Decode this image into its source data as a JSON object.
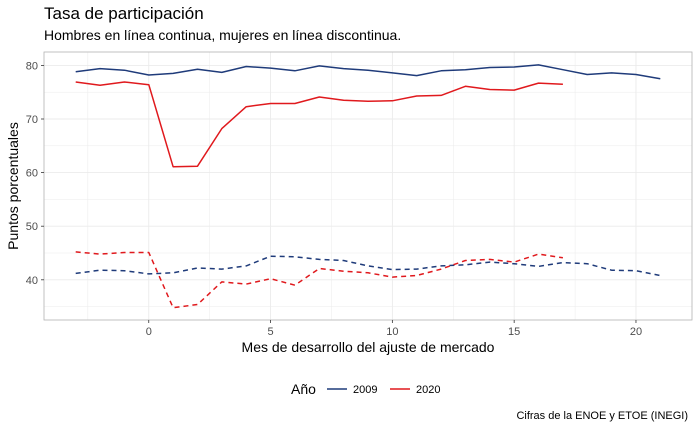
{
  "chart_data": {
    "type": "line",
    "title": "Tasa de participación",
    "subtitle": "Hombres en línea continua, mujeres en línea discontinua.",
    "xlabel": "Mes de desarrollo del ajuste de mercado",
    "ylabel": "Puntos porcentuales",
    "caption": "Cifras de la ENOE y ETOE (INEGI)",
    "legend_title": "Año",
    "legend_position": "bottom",
    "grid": true,
    "xlim": [
      -4.3,
      22.3
    ],
    "ylim": [
      32.5,
      82.5
    ],
    "xticks": [
      0,
      5,
      10,
      15,
      20
    ],
    "yticks": [
      40,
      50,
      60,
      70,
      80
    ],
    "colors": {
      "2009": "#1f3b7a",
      "2020": "#e0191d"
    },
    "series": [
      {
        "name": "2009",
        "group": "Hombres",
        "style": "solid",
        "x": [
          -3,
          -2,
          -1,
          0,
          1,
          2,
          3,
          4,
          5,
          6,
          7,
          8,
          9,
          10,
          11,
          12,
          13,
          14,
          15,
          16,
          17,
          18,
          19,
          20,
          21
        ],
        "y": [
          78.8,
          79.4,
          79.1,
          78.2,
          78.5,
          79.3,
          78.7,
          79.8,
          79.5,
          79.0,
          79.9,
          79.4,
          79.1,
          78.6,
          78.1,
          79.0,
          79.2,
          79.6,
          79.7,
          80.1,
          79.2,
          78.3,
          78.6,
          78.3,
          77.5
        ]
      },
      {
        "name": "2020",
        "group": "Hombres",
        "style": "solid",
        "x": [
          -3,
          -2,
          -1,
          0,
          1,
          2,
          3,
          4,
          5,
          6,
          7,
          8,
          9,
          10,
          11,
          12,
          13,
          14,
          15,
          16,
          17
        ],
        "y": [
          76.9,
          76.3,
          76.9,
          76.4,
          61.1,
          61.2,
          68.2,
          72.3,
          72.9,
          72.9,
          74.1,
          73.5,
          73.3,
          73.4,
          74.3,
          74.4,
          76.1,
          75.5,
          75.4,
          76.7,
          76.5
        ]
      },
      {
        "name": "2009",
        "group": "Mujeres",
        "style": "dashed",
        "x": [
          -3,
          -2,
          -1,
          0,
          1,
          2,
          3,
          4,
          5,
          6,
          7,
          8,
          9,
          10,
          11,
          12,
          13,
          14,
          15,
          16,
          17,
          18,
          19,
          20,
          21
        ],
        "y": [
          41.2,
          41.8,
          41.7,
          41.1,
          41.3,
          42.2,
          42.0,
          42.6,
          44.4,
          44.3,
          43.8,
          43.6,
          42.6,
          41.9,
          42.0,
          42.6,
          42.8,
          43.3,
          43.0,
          42.5,
          43.2,
          43.0,
          41.8,
          41.7,
          40.8
        ]
      },
      {
        "name": "2020",
        "group": "Mujeres",
        "style": "dashed",
        "x": [
          -3,
          -2,
          -1,
          0,
          1,
          2,
          3,
          4,
          5,
          6,
          7,
          8,
          9,
          10,
          11,
          12,
          13,
          14,
          15,
          16,
          17
        ],
        "y": [
          45.2,
          44.8,
          45.1,
          45.1,
          34.8,
          35.4,
          39.6,
          39.2,
          40.2,
          39.0,
          42.1,
          41.6,
          41.3,
          40.5,
          40.8,
          42.0,
          43.6,
          43.8,
          43.3,
          44.8,
          44.1
        ]
      }
    ]
  }
}
